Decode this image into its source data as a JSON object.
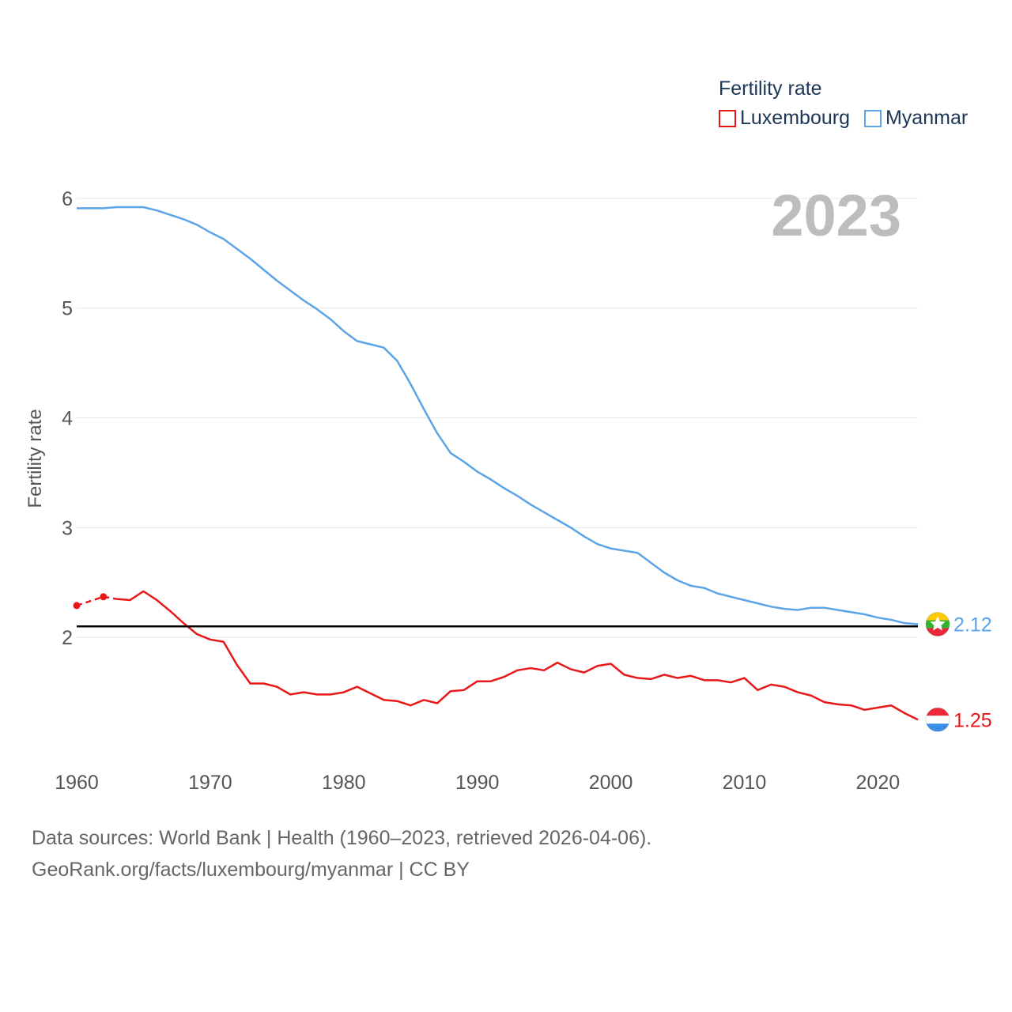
{
  "legend": {
    "title": "Fertility rate",
    "items": [
      {
        "name": "Luxembourg",
        "color": "#e81818"
      },
      {
        "name": "Myanmar",
        "color": "#5ba4e6"
      }
    ]
  },
  "year_label": "2023",
  "source": {
    "line1": "Data sources: World Bank | Health (1960–2023, retrieved 2026-04-06).",
    "line2": "GeoRank.org/facts/luxembourg/myanmar | CC BY"
  },
  "chart_data": {
    "type": "line",
    "title": "Fertility rate",
    "xlabel": "",
    "ylabel": "Fertility rate",
    "xlim": [
      1960,
      2023
    ],
    "ylim": [
      1.0,
      6.1
    ],
    "x_ticks": [
      1960,
      1970,
      1980,
      1990,
      2000,
      2010,
      2020
    ],
    "y_ticks": [
      2,
      3,
      4,
      5,
      6
    ],
    "grid": true,
    "reference_line": {
      "y": 2.1,
      "color": "#000000"
    },
    "series": [
      {
        "name": "Luxembourg",
        "color": "#e81818",
        "end_label": "1.25",
        "estimated_points": [
          [
            1960,
            2.29
          ],
          [
            1962,
            2.37
          ]
        ],
        "estimated_segment": [
          [
            1960,
            2.29
          ],
          [
            1962,
            2.37
          ],
          [
            1963,
            2.35
          ]
        ],
        "points": [
          [
            1963,
            2.35
          ],
          [
            1964,
            2.34
          ],
          [
            1965,
            2.42
          ],
          [
            1966,
            2.34
          ],
          [
            1967,
            2.24
          ],
          [
            1968,
            2.13
          ],
          [
            1969,
            2.03
          ],
          [
            1970,
            1.98
          ],
          [
            1971,
            1.96
          ],
          [
            1972,
            1.75
          ],
          [
            1973,
            1.58
          ],
          [
            1974,
            1.58
          ],
          [
            1975,
            1.55
          ],
          [
            1976,
            1.48
          ],
          [
            1977,
            1.5
          ],
          [
            1978,
            1.48
          ],
          [
            1979,
            1.48
          ],
          [
            1980,
            1.5
          ],
          [
            1981,
            1.55
          ],
          [
            1982,
            1.49
          ],
          [
            1983,
            1.43
          ],
          [
            1984,
            1.42
          ],
          [
            1985,
            1.38
          ],
          [
            1986,
            1.43
          ],
          [
            1987,
            1.4
          ],
          [
            1988,
            1.51
          ],
          [
            1989,
            1.52
          ],
          [
            1990,
            1.6
          ],
          [
            1991,
            1.6
          ],
          [
            1992,
            1.64
          ],
          [
            1993,
            1.7
          ],
          [
            1994,
            1.72
          ],
          [
            1995,
            1.7
          ],
          [
            1996,
            1.77
          ],
          [
            1997,
            1.71
          ],
          [
            1998,
            1.68
          ],
          [
            1999,
            1.74
          ],
          [
            2000,
            1.76
          ],
          [
            2001,
            1.66
          ],
          [
            2002,
            1.63
          ],
          [
            2003,
            1.62
          ],
          [
            2004,
            1.66
          ],
          [
            2005,
            1.63
          ],
          [
            2006,
            1.65
          ],
          [
            2007,
            1.61
          ],
          [
            2008,
            1.61
          ],
          [
            2009,
            1.59
          ],
          [
            2010,
            1.63
          ],
          [
            2011,
            1.52
          ],
          [
            2012,
            1.57
          ],
          [
            2013,
            1.55
          ],
          [
            2014,
            1.5
          ],
          [
            2015,
            1.47
          ],
          [
            2016,
            1.41
          ],
          [
            2017,
            1.39
          ],
          [
            2018,
            1.38
          ],
          [
            2019,
            1.34
          ],
          [
            2020,
            1.36
          ],
          [
            2021,
            1.38
          ],
          [
            2022,
            1.31
          ],
          [
            2023,
            1.25
          ]
        ]
      },
      {
        "name": "Myanmar",
        "color": "#5ba4e6",
        "end_label": "2.12",
        "points": [
          [
            1960,
            5.91
          ],
          [
            1961,
            5.91
          ],
          [
            1962,
            5.91
          ],
          [
            1963,
            5.92
          ],
          [
            1964,
            5.92
          ],
          [
            1965,
            5.92
          ],
          [
            1966,
            5.89
          ],
          [
            1967,
            5.85
          ],
          [
            1968,
            5.81
          ],
          [
            1969,
            5.76
          ],
          [
            1970,
            5.69
          ],
          [
            1971,
            5.63
          ],
          [
            1972,
            5.54
          ],
          [
            1973,
            5.45
          ],
          [
            1974,
            5.35
          ],
          [
            1975,
            5.25
          ],
          [
            1976,
            5.16
          ],
          [
            1977,
            5.07
          ],
          [
            1978,
            4.99
          ],
          [
            1979,
            4.9
          ],
          [
            1980,
            4.79
          ],
          [
            1981,
            4.7
          ],
          [
            1982,
            4.67
          ],
          [
            1983,
            4.64
          ],
          [
            1984,
            4.52
          ],
          [
            1985,
            4.31
          ],
          [
            1986,
            4.08
          ],
          [
            1987,
            3.86
          ],
          [
            1988,
            3.68
          ],
          [
            1989,
            3.6
          ],
          [
            1990,
            3.51
          ],
          [
            1991,
            3.44
          ],
          [
            1992,
            3.36
          ],
          [
            1993,
            3.29
          ],
          [
            1994,
            3.21
          ],
          [
            1995,
            3.14
          ],
          [
            1996,
            3.07
          ],
          [
            1997,
            3.0
          ],
          [
            1998,
            2.92
          ],
          [
            1999,
            2.85
          ],
          [
            2000,
            2.81
          ],
          [
            2001,
            2.79
          ],
          [
            2002,
            2.77
          ],
          [
            2003,
            2.68
          ],
          [
            2004,
            2.59
          ],
          [
            2005,
            2.52
          ],
          [
            2006,
            2.47
          ],
          [
            2007,
            2.45
          ],
          [
            2008,
            2.4
          ],
          [
            2009,
            2.37
          ],
          [
            2010,
            2.34
          ],
          [
            2011,
            2.31
          ],
          [
            2012,
            2.28
          ],
          [
            2013,
            2.26
          ],
          [
            2014,
            2.25
          ],
          [
            2015,
            2.27
          ],
          [
            2016,
            2.27
          ],
          [
            2017,
            2.25
          ],
          [
            2018,
            2.23
          ],
          [
            2019,
            2.21
          ],
          [
            2020,
            2.18
          ],
          [
            2021,
            2.16
          ],
          [
            2022,
            2.13
          ],
          [
            2023,
            2.12
          ]
        ]
      }
    ]
  }
}
